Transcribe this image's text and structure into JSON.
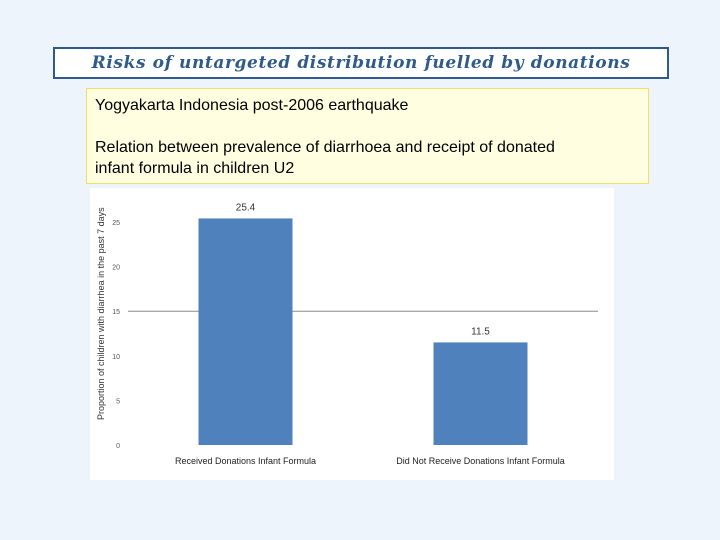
{
  "slide": {
    "title": "Risks of untargeted distribution fuelled by donations",
    "note_line1": "Yogyakarta Indonesia post-2006 earthquake",
    "note_line2": "Relation between prevalence of diarrhoea and receipt of donated",
    "note_line3": "infant formula in children U2"
  },
  "colors": {
    "bar": "#4f81bd",
    "title": "#2e5b8a",
    "gridline": "#8c8c8c"
  },
  "chart_data": {
    "type": "bar",
    "categories": [
      "Received Donations Infant Formula",
      "Did Not Receive Donations Infant Formula"
    ],
    "values": [
      25.4,
      11.5
    ],
    "data_labels": [
      "25.4",
      "11.5"
    ],
    "ylabel": "Proportion of children with diarrhea in the past 7 days",
    "yticks": [
      0,
      5,
      10,
      15,
      20,
      25
    ],
    "ytick_labels": [
      "0",
      "5",
      "10",
      "15",
      "20",
      "25"
    ],
    "ylim": [
      0,
      25
    ],
    "grid": false,
    "reference_line": 15
  }
}
